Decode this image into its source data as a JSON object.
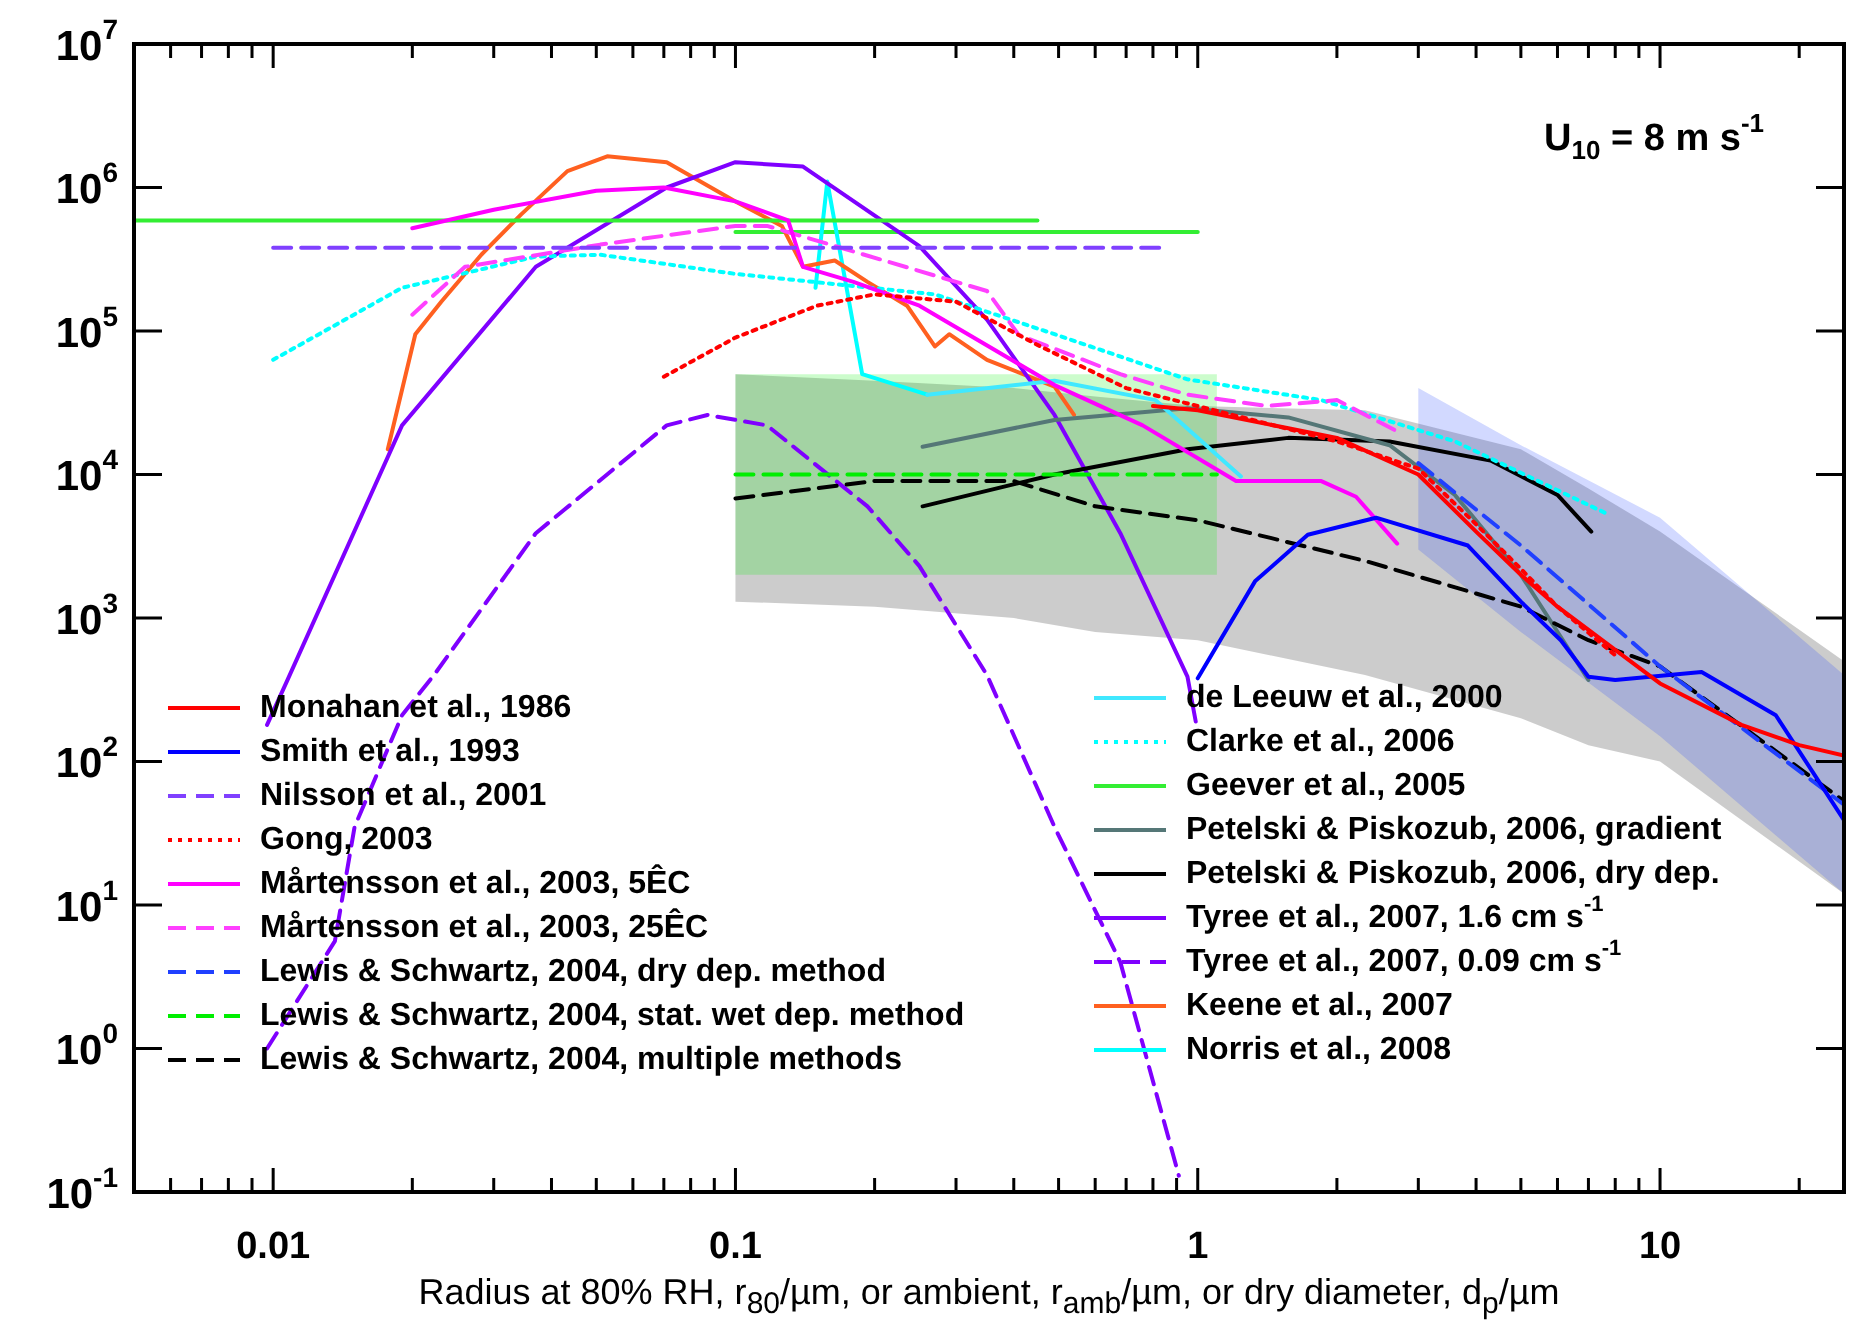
{
  "chart_data": {
    "type": "line",
    "log": "xy",
    "xlabel": "Radius at 80% RH, r$_{80}$/µm, or ambient, r$_{amb}$/µm, or dry diameter, d$_{p}$/µm",
    "annotations": [
      "U$_{10}$ = 8 m s$^{-1}$"
    ],
    "xlim": [
      0.005,
      25
    ],
    "ylim": [
      0.1,
      10000000
    ],
    "xticks": [
      {
        "value": 0.006,
        "label": null
      },
      {
        "value": 0.007,
        "label": null
      },
      {
        "value": 0.008,
        "label": null
      },
      {
        "value": 0.009,
        "label": null
      },
      0.01,
      {
        "value": 0.02,
        "label": null
      },
      {
        "value": 0.03,
        "label": null
      },
      {
        "value": 0.04,
        "label": null
      },
      {
        "value": 0.05,
        "label": null
      },
      {
        "value": 0.06,
        "label": null
      },
      {
        "value": 0.07,
        "label": null
      },
      {
        "value": 0.08,
        "label": null
      },
      {
        "value": 0.09,
        "label": null
      },
      0.1,
      {
        "value": 0.2,
        "label": null
      },
      {
        "value": 0.3,
        "label": null
      },
      {
        "value": 0.4,
        "label": null
      },
      {
        "value": 0.5,
        "label": null
      },
      {
        "value": 0.6,
        "label": null
      },
      {
        "value": 0.7,
        "label": null
      },
      {
        "value": 0.8,
        "label": null
      },
      {
        "value": 0.9,
        "label": null
      },
      1,
      {
        "value": 2,
        "label": null
      },
      {
        "value": 3,
        "label": null
      },
      {
        "value": 4,
        "label": null
      },
      {
        "value": 5,
        "label": null
      },
      {
        "value": 6,
        "label": null
      },
      {
        "value": 7,
        "label": null
      },
      {
        "value": 8,
        "label": null
      },
      {
        "value": 9,
        "label": null
      },
      10,
      {
        "value": 20,
        "label": null
      }
    ],
    "yticks": [
      {
        "value": 0.1,
        "label": "10$^{-1}$"
      },
      {
        "value": 1,
        "label": "10$^{0}$"
      },
      {
        "value": 10,
        "label": "10$^{1}$"
      },
      {
        "value": 100,
        "label": "10$^{2}$"
      },
      {
        "value": 1000,
        "label": "10$^{3}$"
      },
      {
        "value": 10000,
        "label": "10$^{4}$"
      },
      {
        "value": 100000,
        "label": "10$^{5}$"
      },
      {
        "value": 1000000,
        "label": "10$^{6}$"
      },
      {
        "value": 10000000,
        "label": "10$^{7}$"
      }
    ],
    "grid": false,
    "legend": "bottom",
    "series": [
      {
        "name": "Monahan et al., 1986",
        "color": "#ff0000",
        "line_style": "solid",
        "x": [
          0.8,
          1,
          2,
          3,
          4,
          5,
          6,
          8,
          10,
          15,
          20,
          25
        ],
        "values": [
          30000,
          28000,
          18000,
          10000,
          4000,
          2000,
          1200,
          600,
          350,
          180,
          130,
          110
        ]
      },
      {
        "name": "Smith et al., 1993",
        "color": "#0000ff",
        "line_style": "solid",
        "x": [
          1,
          1.33,
          1.73,
          2.43,
          3.84,
          5,
          6.1,
          7,
          8,
          12.3,
          17.8,
          25
        ],
        "values": [
          380,
          1800,
          3800,
          5000,
          3200,
          1300,
          700,
          390,
          370,
          420,
          210,
          39
        ]
      },
      {
        "name": "Nilsson et al., 2001",
        "color": "#8040ff",
        "line_style": "dashed",
        "x": [
          0.01,
          0.83
        ],
        "values": [
          380000,
          380000
        ]
      },
      {
        "name": "Gong, 2003",
        "color": "#ff0000",
        "line_style": "dotted",
        "x": [
          0.07,
          0.1,
          0.15,
          0.2,
          0.3,
          0.45,
          0.7,
          1,
          2,
          3,
          4,
          5,
          6,
          8
        ],
        "values": [
          48000,
          90000,
          150000,
          180000,
          160000,
          80000,
          40000,
          30000,
          17000,
          11000,
          4500,
          2200,
          1200,
          550
        ]
      },
      {
        "name": "Mårtensson et al., 2003, 5ÊC",
        "color": "#ff00ff",
        "line_style": "solid",
        "x": [
          0.02,
          0.03,
          0.05,
          0.07,
          0.1,
          0.13,
          0.14,
          0.18,
          0.25,
          0.49,
          0.76,
          1.21,
          1.85,
          2.2,
          2.7
        ],
        "values": [
          520000,
          700000,
          950000,
          1000000,
          800000,
          590000,
          280000,
          220000,
          150000,
          42000,
          22000,
          9000,
          9000,
          7000,
          3300
        ]
      },
      {
        "name": "Mårtensson et al., 2003, 25ÊC",
        "color": "#ff40ff",
        "line_style": "dashed",
        "x": [
          0.02,
          0.026,
          0.051,
          0.1,
          0.117,
          0.35,
          0.41,
          0.68,
          0.95,
          1.41,
          2,
          2.7
        ],
        "values": [
          130000,
          280000,
          400000,
          540000,
          540000,
          190000,
          94000,
          50000,
          36000,
          30000,
          33000,
          20000
        ]
      },
      {
        "name": "Lewis & Schwartz, 2004, dry dep. method",
        "color": "#2040ff",
        "line_style": "dashed",
        "x": [
          3,
          5,
          10,
          25
        ],
        "values": [
          12000,
          3200,
          460,
          50
        ],
        "upper": [
          40000,
          16000,
          5000,
          400
        ],
        "lower": [
          3000,
          800,
          150,
          12
        ]
      },
      {
        "name": "Lewis & Schwartz, 2004, stat. wet dep. method",
        "color": "#00ee00",
        "line_style": "dashed",
        "x": [
          0.1,
          1.1
        ],
        "values": [
          10000,
          10000
        ],
        "upper": [
          50000,
          50000
        ],
        "lower": [
          2000,
          2000
        ]
      },
      {
        "name": "Lewis & Schwartz, 2004, multiple methods",
        "color": "#000000",
        "line_style": "dashed",
        "x": [
          0.1,
          0.2,
          0.4,
          0.6,
          1,
          2.3,
          5,
          7,
          10,
          25
        ],
        "values": [
          6800,
          9000,
          9000,
          6000,
          4800,
          2500,
          1200,
          700,
          460,
          53
        ],
        "upper": [
          50000,
          45000,
          40000,
          35000,
          30000,
          28000,
          15000,
          8000,
          4000,
          500
        ],
        "lower": [
          1300,
          1200,
          1000,
          800,
          700,
          400,
          200,
          130,
          100,
          12
        ]
      },
      {
        "name": "de Leeuw et al., 2000",
        "color": "#40e8ff",
        "line_style": "solid",
        "x": [
          0.26,
          0.49,
          0.81,
          1.24
        ],
        "values": [
          36000,
          45000,
          33000,
          9700
        ]
      },
      {
        "name": "Clarke et al., 2006",
        "color": "#00ffff",
        "line_style": "dotted",
        "x": [
          0.01,
          0.019,
          0.037,
          0.051,
          0.1,
          0.27,
          0.49,
          0.95,
          1.85,
          3.6,
          7.7
        ],
        "values": [
          63000,
          200000,
          330000,
          340000,
          250000,
          180000,
          95000,
          46000,
          33000,
          17000,
          5300
        ]
      },
      {
        "name": "Geever et al., 2005",
        "color": "#33ee33",
        "line_style": "solid",
        "x": [
          0.005,
          0.45
        ],
        "values": [
          590000,
          590000
        ]
      },
      {
        "name": "Petelski & Piskozub, 2006, gradient",
        "color": "#557777",
        "line_style": "solid",
        "x": [
          0.254,
          0.49,
          0.95,
          1.57,
          2.6,
          3.6,
          5,
          7
        ],
        "values": [
          15600,
          24000,
          29000,
          25000,
          16000,
          7200,
          2000,
          370
        ]
      },
      {
        "name": "Petelski & Piskozub, 2006, dry dep.",
        "color": "#000000",
        "line_style": "solid",
        "x": [
          0.254,
          0.49,
          0.95,
          1.57,
          2.6,
          4.3,
          6,
          7.1
        ],
        "values": [
          6000,
          10000,
          15000,
          18000,
          17000,
          12500,
          7200,
          4000
        ]
      },
      {
        "name": "Tyree et al., 2007, 1.6 cm s$^{-1}$",
        "color": "#7f00ff",
        "line_style": "solid",
        "x": [
          0.0097,
          0.0107,
          0.019,
          0.037,
          0.071,
          0.1,
          0.14,
          0.25,
          0.35,
          0.49,
          0.68,
          0.95,
          0.99
        ],
        "values": [
          180,
          360,
          22000,
          280000,
          1000000,
          1500000,
          1400000,
          390000,
          120000,
          26000,
          3900,
          390,
          190
        ]
      },
      {
        "name": "Tyree et al., 2007, 0.09 cm s$^{-1}$",
        "color": "#7f00ff",
        "line_style": "dashed",
        "x": [
          0.0097,
          0.0136,
          0.015,
          0.019,
          0.0224,
          0.037,
          0.071,
          0.087,
          0.117,
          0.193,
          0.25,
          0.35,
          0.49,
          0.68,
          0.91
        ],
        "values": [
          1,
          5.6,
          35,
          210,
          410,
          3900,
          22000,
          26000,
          22000,
          6000,
          2300,
          400,
          35,
          4,
          0.13
        ]
      },
      {
        "name": "Keene et al., 2007",
        "color": "#ff6020",
        "line_style": "solid",
        "x": [
          0.0177,
          0.0203,
          0.0231,
          0.0282,
          0.0344,
          0.0433,
          0.0528,
          0.071,
          0.1,
          0.126,
          0.14,
          0.164,
          0.193,
          0.235,
          0.27,
          0.29,
          0.35,
          0.49,
          0.54
        ],
        "values": [
          15000,
          95000,
          160000,
          340000,
          650000,
          1300000,
          1650000,
          1500000,
          800000,
          540000,
          280000,
          310000,
          220000,
          150000,
          78000,
          95000,
          63000,
          41000,
          26000
        ]
      },
      {
        "name": "Norris et al., 2008",
        "color": "#00ffff",
        "line_style": "solid",
        "x": [
          0.149,
          0.158,
          0.188,
          0.26
        ],
        "values": [
          200000,
          1100000,
          50000,
          36000
        ]
      },
      {
        "color": "#33ee33",
        "line_style": "solid",
        "x": [
          0.1,
          1
        ],
        "values": [
          490000,
          490000
        ]
      }
    ]
  }
}
